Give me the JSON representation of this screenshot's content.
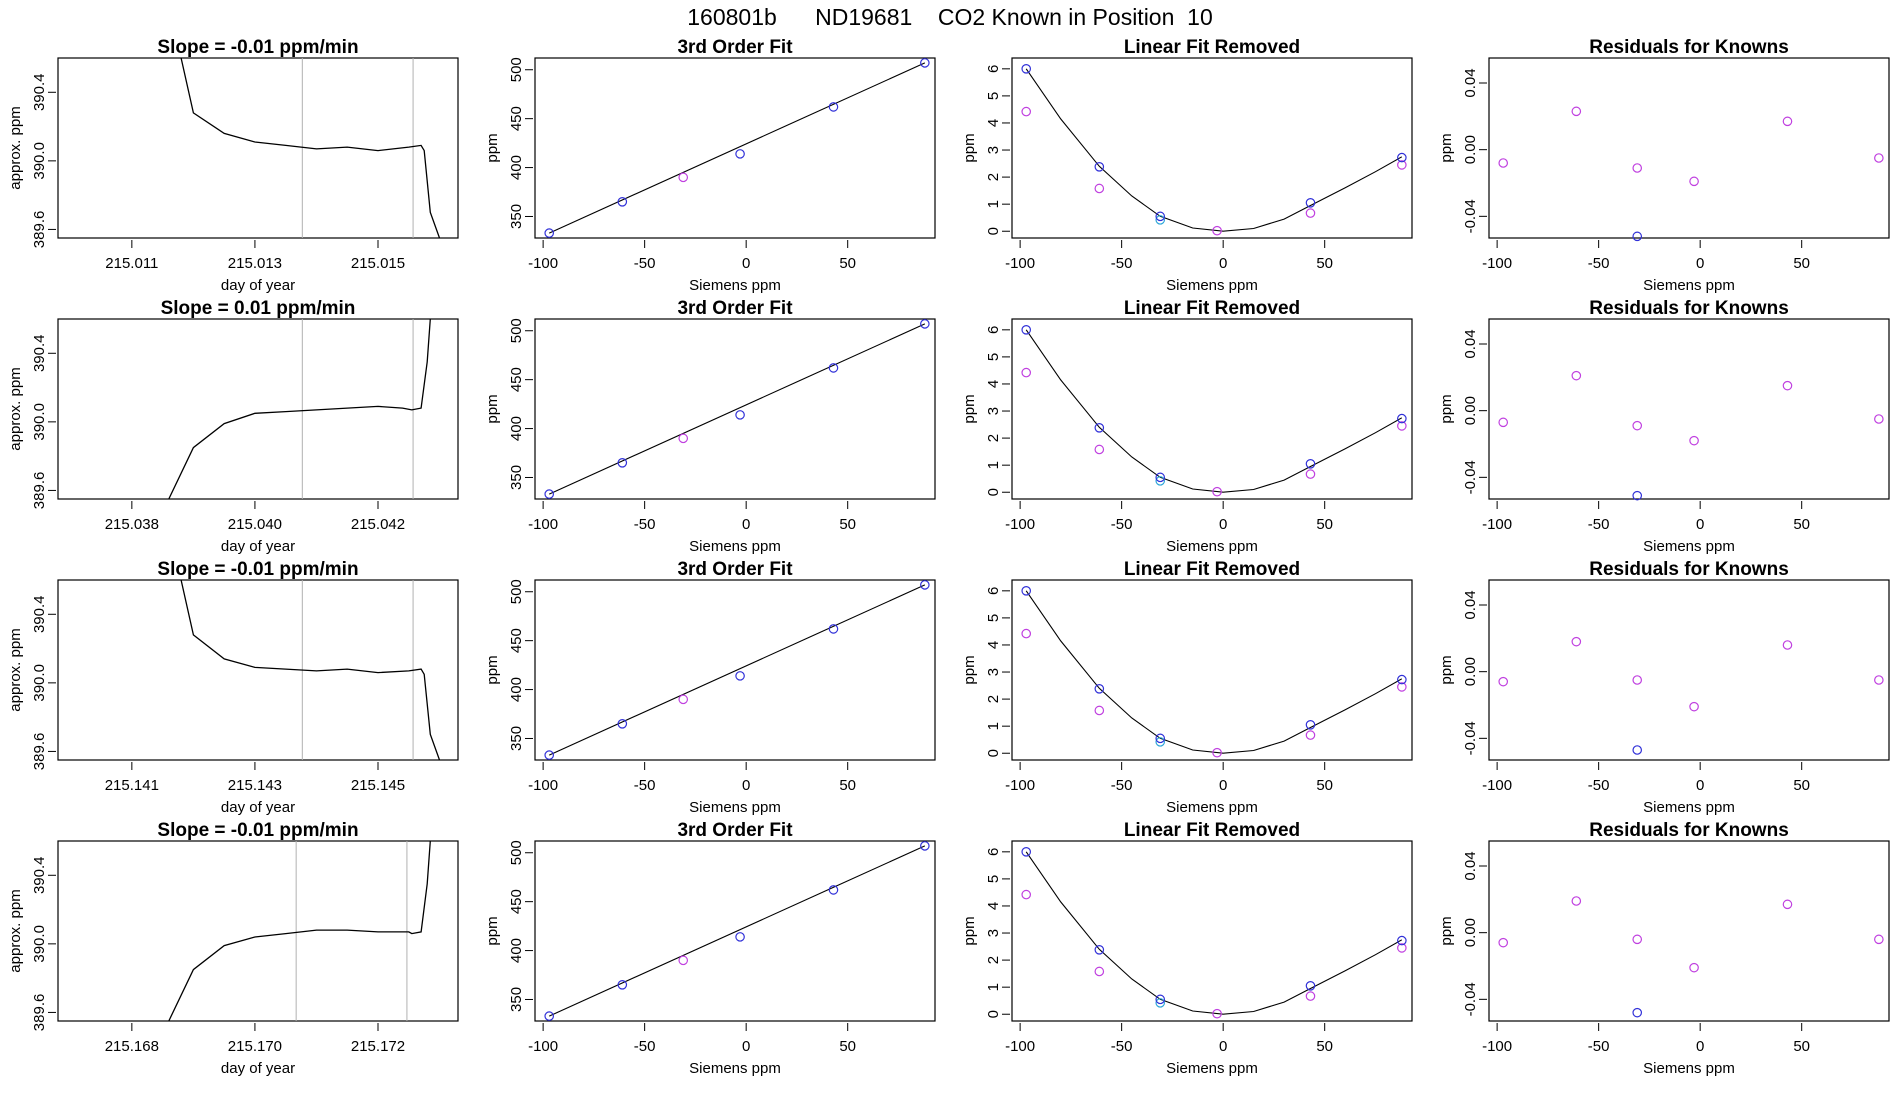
{
  "title": "160801b      ND19681    CO2 Known in Position  10",
  "colors": {
    "line": "#000000",
    "vline": "#b0b0b0",
    "blue": "#3030d8",
    "cyan": "#2aa5d8",
    "magenta": "#c040e0",
    "spike": "#e06060"
  },
  "chart_data": [
    {
      "row": 0,
      "type": "line",
      "title": "Slope =  -0.01  ppm/min",
      "xlabel": "day of year",
      "ylabel": "approx. ppm",
      "xticks": [
        "215.011",
        "215.013",
        "215.015"
      ],
      "yticks": [
        "389.6",
        "390.0",
        "390.4"
      ],
      "xlim": [
        215.0098,
        215.0163
      ],
      "ylim": [
        389.55,
        390.6
      ],
      "vlines": [
        215.01377,
        215.01557
      ],
      "series": [
        {
          "x": [
            215.0118,
            215.012,
            215.0125,
            215.013,
            215.0135,
            215.014,
            215.0145,
            215.015,
            215.0155,
            215.0157,
            215.01575,
            215.01585,
            215.016
          ],
          "y": [
            390.6,
            390.28,
            390.16,
            390.11,
            390.09,
            390.07,
            390.08,
            390.06,
            390.08,
            390.09,
            390.06,
            389.7,
            389.55
          ]
        }
      ]
    },
    {
      "row": 0,
      "type": "scatter",
      "title": "3rd Order Fit",
      "xlabel": "Siemens ppm",
      "ylabel": "ppm",
      "xticks": [
        "-100",
        "-50",
        "0",
        "50"
      ],
      "yticks": [
        "350",
        "400",
        "450",
        "500"
      ],
      "xlim": [
        -104,
        93
      ],
      "ylim": [
        328,
        512
      ],
      "fit": {
        "x": [
          -97,
          88
        ],
        "y": [
          333,
          507
        ]
      },
      "points_blue": {
        "x": [
          -97,
          -61,
          -3,
          43,
          88
        ],
        "y": [
          333,
          365,
          414,
          462,
          507
        ]
      },
      "points_magenta": {
        "x": [
          -31
        ],
        "y": [
          390
        ]
      }
    },
    {
      "row": 0,
      "type": "scatter",
      "title": "Linear Fit Removed",
      "xlabel": "Siemens ppm",
      "ylabel": "ppm",
      "xticks": [
        "-100",
        "-50",
        "0",
        "50"
      ],
      "yticks": [
        "0",
        "1",
        "2",
        "3",
        "4",
        "5",
        "6"
      ],
      "xlim": [
        -104,
        93
      ],
      "ylim": [
        -0.25,
        6.4
      ],
      "curve": {
        "x": [
          -97,
          -80,
          -61,
          -45,
          -31,
          -15,
          0,
          15,
          30,
          43,
          60,
          75,
          88
        ],
        "y": [
          6.0,
          4.15,
          2.4,
          1.3,
          0.55,
          0.12,
          0.0,
          0.1,
          0.45,
          0.95,
          1.6,
          2.2,
          2.75
        ]
      },
      "points_blue": {
        "x": [
          -97,
          -61,
          -31,
          43,
          88
        ],
        "y": [
          6.0,
          2.38,
          0.55,
          1.05,
          2.72
        ]
      },
      "points_cyan": {
        "x": [
          -31
        ],
        "y": [
          0.42
        ]
      },
      "points_magenta": {
        "x": [
          -97,
          -61,
          -3,
          43,
          88
        ],
        "y": [
          4.42,
          1.58,
          0.02,
          0.67,
          2.45
        ]
      }
    },
    {
      "row": 0,
      "type": "scatter",
      "title": "Residuals for Knowns",
      "xlabel": "Siemens ppm",
      "ylabel": "ppm",
      "xticks": [
        "-100",
        "-50",
        "0",
        "50"
      ],
      "yticks": [
        "-0.04",
        "0.00",
        "0.04"
      ],
      "xlim": [
        -104,
        93
      ],
      "ylim": [
        -0.053,
        0.055
      ],
      "points_magenta": {
        "x": [
          -97,
          -61,
          -31,
          -3,
          43,
          88
        ],
        "y": [
          -0.008,
          0.023,
          -0.011,
          -0.019,
          0.017,
          -0.005
        ]
      },
      "points_blue": {
        "x": [
          -31
        ],
        "y": [
          -0.052
        ]
      }
    },
    {
      "row": 1,
      "type": "line",
      "title": "Slope =  0.01  ppm/min",
      "xlabel": "day of year",
      "ylabel": "approx. ppm",
      "xticks": [
        "215.038",
        "215.040",
        "215.042"
      ],
      "yticks": [
        "389.6",
        "390.0",
        "390.4"
      ],
      "xlim": [
        215.0368,
        215.0433
      ],
      "ylim": [
        389.55,
        390.6
      ],
      "vlines": [
        215.04077,
        215.04257
      ],
      "series": [
        {
          "x": [
            215.0386,
            215.039,
            215.0395,
            215.04,
            215.0405,
            215.041,
            215.0415,
            215.042,
            215.0424,
            215.04255,
            215.0427,
            215.0428,
            215.04285
          ],
          "y": [
            389.55,
            389.85,
            389.99,
            390.05,
            390.06,
            390.07,
            390.08,
            390.09,
            390.08,
            390.07,
            390.08,
            390.35,
            390.6
          ]
        }
      ]
    },
    {
      "row": 1,
      "type": "scatter",
      "title": "3rd Order Fit",
      "xlabel": "Siemens ppm",
      "ylabel": "ppm",
      "xticks": [
        "-100",
        "-50",
        "0",
        "50"
      ],
      "yticks": [
        "350",
        "400",
        "450",
        "500"
      ],
      "xlim": [
        -104,
        93
      ],
      "ylim": [
        328,
        512
      ],
      "fit": {
        "x": [
          -97,
          88
        ],
        "y": [
          333,
          507
        ]
      },
      "points_blue": {
        "x": [
          -97,
          -61,
          -3,
          43,
          88
        ],
        "y": [
          333,
          365,
          414,
          462,
          507
        ]
      },
      "points_magenta": {
        "x": [
          -31
        ],
        "y": [
          390
        ]
      }
    },
    {
      "row": 1,
      "type": "scatter",
      "title": "Linear Fit Removed",
      "xlabel": "Siemens ppm",
      "ylabel": "ppm",
      "xticks": [
        "-100",
        "-50",
        "0",
        "50"
      ],
      "yticks": [
        "0",
        "1",
        "2",
        "3",
        "4",
        "5",
        "6"
      ],
      "xlim": [
        -104,
        93
      ],
      "ylim": [
        -0.25,
        6.4
      ],
      "curve": {
        "x": [
          -97,
          -80,
          -61,
          -45,
          -31,
          -15,
          0,
          15,
          30,
          43,
          60,
          75,
          88
        ],
        "y": [
          6.0,
          4.15,
          2.4,
          1.3,
          0.55,
          0.12,
          0.0,
          0.1,
          0.45,
          0.95,
          1.6,
          2.2,
          2.75
        ]
      },
      "points_blue": {
        "x": [
          -97,
          -61,
          -31,
          43,
          88
        ],
        "y": [
          6.0,
          2.38,
          0.55,
          1.05,
          2.72
        ]
      },
      "points_cyan": {
        "x": [
          -31
        ],
        "y": [
          0.42
        ]
      },
      "points_magenta": {
        "x": [
          -97,
          -61,
          -3,
          43,
          88
        ],
        "y": [
          4.42,
          1.58,
          0.02,
          0.67,
          2.45
        ]
      }
    },
    {
      "row": 1,
      "type": "scatter",
      "title": "Residuals for Knowns",
      "xlabel": "Siemens ppm",
      "ylabel": "ppm",
      "xticks": [
        "-100",
        "-50",
        "0",
        "50"
      ],
      "yticks": [
        "-0.04",
        "0.00",
        "0.04"
      ],
      "xlim": [
        -104,
        93
      ],
      "ylim": [
        -0.053,
        0.055
      ],
      "points_magenta": {
        "x": [
          -97,
          -61,
          -31,
          -3,
          43,
          88
        ],
        "y": [
          -0.007,
          0.021,
          -0.009,
          -0.018,
          0.015,
          -0.005
        ]
      },
      "points_blue": {
        "x": [
          -31
        ],
        "y": [
          -0.051
        ]
      }
    },
    {
      "row": 2,
      "type": "line",
      "title": "Slope =  -0.01  ppm/min",
      "xlabel": "day of year",
      "ylabel": "approx. ppm",
      "xticks": [
        "215.141",
        "215.143",
        "215.145"
      ],
      "yticks": [
        "389.6",
        "390.0",
        "390.4"
      ],
      "xlim": [
        215.1398,
        215.1463
      ],
      "ylim": [
        389.55,
        390.6
      ],
      "vlines": [
        215.14377,
        215.14557
      ],
      "series": [
        {
          "x": [
            215.1418,
            215.142,
            215.1425,
            215.143,
            215.1435,
            215.144,
            215.1445,
            215.145,
            215.1455,
            215.1457,
            215.14575,
            215.14585,
            215.146
          ],
          "y": [
            390.6,
            390.28,
            390.14,
            390.09,
            390.08,
            390.07,
            390.08,
            390.06,
            390.07,
            390.08,
            390.05,
            389.7,
            389.55
          ]
        }
      ]
    },
    {
      "row": 2,
      "type": "scatter",
      "title": "3rd Order Fit",
      "xlabel": "Siemens ppm",
      "ylabel": "ppm",
      "xticks": [
        "-100",
        "-50",
        "0",
        "50"
      ],
      "yticks": [
        "350",
        "400",
        "450",
        "500"
      ],
      "xlim": [
        -104,
        93
      ],
      "ylim": [
        328,
        512
      ],
      "fit": {
        "x": [
          -97,
          88
        ],
        "y": [
          333,
          507
        ]
      },
      "points_blue": {
        "x": [
          -97,
          -61,
          -3,
          43,
          88
        ],
        "y": [
          333,
          365,
          414,
          462,
          507
        ]
      },
      "points_magenta": {
        "x": [
          -31
        ],
        "y": [
          390
        ]
      }
    },
    {
      "row": 2,
      "type": "scatter",
      "title": "Linear Fit Removed",
      "xlabel": "Siemens ppm",
      "ylabel": "ppm",
      "xticks": [
        "-100",
        "-50",
        "0",
        "50"
      ],
      "yticks": [
        "0",
        "1",
        "2",
        "3",
        "4",
        "5",
        "6"
      ],
      "xlim": [
        -104,
        93
      ],
      "ylim": [
        -0.25,
        6.4
      ],
      "curve": {
        "x": [
          -97,
          -80,
          -61,
          -45,
          -31,
          -15,
          0,
          15,
          30,
          43,
          60,
          75,
          88
        ],
        "y": [
          6.0,
          4.15,
          2.4,
          1.3,
          0.55,
          0.12,
          0.0,
          0.1,
          0.45,
          0.95,
          1.6,
          2.2,
          2.75
        ]
      },
      "points_blue": {
        "x": [
          -97,
          -61,
          -31,
          43,
          88
        ],
        "y": [
          6.0,
          2.38,
          0.55,
          1.05,
          2.72
        ]
      },
      "points_cyan": {
        "x": [
          -31
        ],
        "y": [
          0.42
        ]
      },
      "points_magenta": {
        "x": [
          -97,
          -61,
          -3,
          43,
          88
        ],
        "y": [
          4.42,
          1.58,
          0.02,
          0.67,
          2.45
        ]
      }
    },
    {
      "row": 2,
      "type": "scatter",
      "title": "Residuals for Knowns",
      "xlabel": "Siemens ppm",
      "ylabel": "ppm",
      "xticks": [
        "-100",
        "-50",
        "0",
        "50"
      ],
      "yticks": [
        "-0.04",
        "0.00",
        "0.04"
      ],
      "xlim": [
        -104,
        93
      ],
      "ylim": [
        -0.053,
        0.055
      ],
      "points_magenta": {
        "x": [
          -97,
          -61,
          -31,
          -3,
          43,
          88
        ],
        "y": [
          -0.006,
          0.018,
          -0.005,
          -0.021,
          0.016,
          -0.005
        ]
      },
      "points_blue": {
        "x": [
          -31
        ],
        "y": [
          -0.047
        ]
      }
    },
    {
      "row": 3,
      "type": "line",
      "title": "Slope =  -0.01  ppm/min",
      "xlabel": "day of year",
      "ylabel": "approx. ppm",
      "xticks": [
        "215.168",
        "215.170",
        "215.172"
      ],
      "yticks": [
        "389.6",
        "390.0",
        "390.4"
      ],
      "xlim": [
        215.1668,
        215.1733
      ],
      "ylim": [
        389.55,
        390.6
      ],
      "vlines": [
        215.17067,
        215.17247
      ],
      "series": [
        {
          "x": [
            215.1686,
            215.169,
            215.1695,
            215.17,
            215.1705,
            215.171,
            215.1715,
            215.172,
            215.1725,
            215.17255,
            215.1727,
            215.1728,
            215.17285
          ],
          "y": [
            389.55,
            389.85,
            389.99,
            390.04,
            390.06,
            390.08,
            390.08,
            390.07,
            390.07,
            390.06,
            390.07,
            390.35,
            390.6
          ]
        }
      ]
    },
    {
      "row": 3,
      "type": "scatter",
      "title": "3rd Order Fit",
      "xlabel": "Siemens ppm",
      "ylabel": "ppm",
      "xticks": [
        "-100",
        "-50",
        "0",
        "50"
      ],
      "yticks": [
        "350",
        "400",
        "450",
        "500"
      ],
      "xlim": [
        -104,
        93
      ],
      "ylim": [
        328,
        512
      ],
      "fit": {
        "x": [
          -97,
          88
        ],
        "y": [
          333,
          507
        ]
      },
      "points_blue": {
        "x": [
          -97,
          -61,
          -3,
          43,
          88
        ],
        "y": [
          333,
          365,
          414,
          462,
          507
        ]
      },
      "points_magenta": {
        "x": [
          -31
        ],
        "y": [
          390
        ]
      }
    },
    {
      "row": 3,
      "type": "scatter",
      "title": "Linear Fit Removed",
      "xlabel": "Siemens ppm",
      "ylabel": "ppm",
      "xticks": [
        "-100",
        "-50",
        "0",
        "50"
      ],
      "yticks": [
        "0",
        "1",
        "2",
        "3",
        "4",
        "5",
        "6"
      ],
      "xlim": [
        -104,
        93
      ],
      "ylim": [
        -0.25,
        6.4
      ],
      "curve": {
        "x": [
          -97,
          -80,
          -61,
          -45,
          -31,
          -15,
          0,
          15,
          30,
          43,
          60,
          75,
          88
        ],
        "y": [
          6.0,
          4.15,
          2.4,
          1.3,
          0.55,
          0.12,
          0.0,
          0.1,
          0.45,
          0.95,
          1.6,
          2.2,
          2.75
        ]
      },
      "points_blue": {
        "x": [
          -97,
          -61,
          -31,
          43,
          88
        ],
        "y": [
          6.0,
          2.38,
          0.55,
          1.05,
          2.72
        ]
      },
      "points_cyan": {
        "x": [
          -31
        ],
        "y": [
          0.42
        ]
      },
      "points_magenta": {
        "x": [
          -97,
          -61,
          -3,
          43,
          88
        ],
        "y": [
          4.42,
          1.58,
          0.02,
          0.67,
          2.45
        ]
      }
    },
    {
      "row": 3,
      "type": "scatter",
      "title": "Residuals for Knowns",
      "xlabel": "Siemens ppm",
      "ylabel": "ppm",
      "xticks": [
        "-100",
        "-50",
        "0",
        "50"
      ],
      "yticks": [
        "-0.04",
        "0.00",
        "0.04"
      ],
      "xlim": [
        -104,
        93
      ],
      "ylim": [
        -0.053,
        0.055
      ],
      "points_magenta": {
        "x": [
          -97,
          -61,
          -31,
          -3,
          43,
          88
        ],
        "y": [
          -0.006,
          0.019,
          -0.004,
          -0.021,
          0.017,
          -0.004
        ]
      },
      "points_blue": {
        "x": [
          -31
        ],
        "y": [
          -0.048
        ]
      }
    }
  ]
}
